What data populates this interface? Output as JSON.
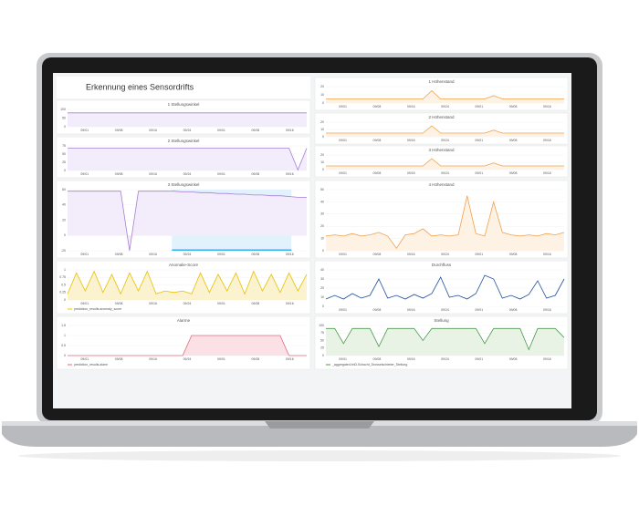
{
  "header": {
    "title": "Erkennung eines Sensordrifts"
  },
  "xticks": [
    "09/01",
    "09/08",
    "09/16",
    "09/24",
    "09/01",
    "09/08",
    "09/16"
  ],
  "left_column": [
    {
      "title": "1 Stellungswinkel",
      "ylim": [
        0,
        100
      ],
      "yticks": [
        0,
        50,
        100
      ],
      "series": [
        {
          "color": "#a77fd6",
          "fill": "#f3ecfa",
          "values": [
            80,
            80,
            80,
            80,
            80,
            80,
            80,
            80,
            80,
            80,
            80,
            80,
            80,
            80,
            80,
            80,
            80,
            80,
            80,
            80,
            80,
            80,
            80,
            80,
            80,
            80,
            80,
            80
          ]
        }
      ]
    },
    {
      "title": "2 Stellungswinkel",
      "ylim": [
        0,
        75
      ],
      "yticks": [
        0,
        25,
        50,
        75
      ],
      "series": [
        {
          "color": "#a77fd6",
          "fill": "#f3ecfa",
          "values": [
            68,
            68,
            68,
            68,
            68,
            68,
            68,
            68,
            68,
            68,
            68,
            68,
            68,
            68,
            68,
            68,
            68,
            68,
            68,
            68,
            68,
            68,
            68,
            68,
            68,
            68,
            2,
            68
          ]
        }
      ]
    },
    {
      "title": "3 Stellungswinkel",
      "ylim": [
        -20,
        60
      ],
      "yticks": [
        -20,
        0,
        20,
        40,
        60
      ],
      "series": [
        {
          "color": "#a77fd6",
          "fill": "#f3ecfa",
          "values": [
            58,
            58,
            58,
            58,
            58,
            58,
            58,
            -20,
            58,
            58,
            58,
            58,
            58,
            57,
            57,
            56,
            56,
            55,
            55,
            54,
            54,
            53,
            53,
            52,
            52,
            51,
            50,
            50
          ]
        }
      ]
    },
    {
      "title": "Anomalie-Score",
      "ylim": [
        0,
        1
      ],
      "yticks": [
        0,
        0.25,
        0.5,
        0.75,
        1
      ],
      "series": [
        {
          "name": "prediction_results.anomaly_score",
          "color": "#e8c000",
          "fill": "#fbf3cf",
          "values": [
            0.2,
            0.9,
            0.3,
            0.95,
            0.25,
            0.85,
            0.2,
            0.9,
            0.3,
            0.95,
            0.2,
            0.3,
            0.25,
            0.3,
            0.2,
            0.9,
            0.25,
            0.85,
            0.3,
            0.9,
            0.2,
            0.95,
            0.3,
            0.85,
            0.25,
            0.9,
            0.3,
            0.85
          ]
        }
      ]
    },
    {
      "title": "Alarme",
      "ylim": [
        0,
        1.5
      ],
      "yticks": [
        0,
        0.5,
        1,
        1.5
      ],
      "series": [
        {
          "name": "prediction_results.alarm",
          "color": "#e06c7c",
          "fill": "#fbe1e5",
          "values": [
            0,
            0,
            0,
            0,
            0,
            0,
            0,
            0,
            0,
            0,
            0,
            0,
            0,
            0,
            1,
            1,
            1,
            1,
            1,
            1,
            1,
            1,
            1,
            1,
            1,
            0,
            0,
            0
          ]
        }
      ]
    }
  ],
  "right_column": [
    {
      "title": "1 Höhenstand",
      "ylim": [
        0,
        20
      ],
      "yticks": [
        0,
        10,
        20
      ],
      "series": [
        {
          "color": "#f2a04a",
          "fill": "#fdf2e4",
          "values": [
            5,
            5,
            5,
            5,
            5,
            5,
            5,
            5,
            5,
            5,
            5,
            5,
            15,
            5,
            5,
            5,
            5,
            5,
            5,
            9,
            5,
            5,
            5,
            5,
            5,
            5,
            5,
            5
          ]
        }
      ]
    },
    {
      "title": "2 Höhenstand",
      "ylim": [
        0,
        20
      ],
      "yticks": [
        0,
        10,
        20
      ],
      "series": [
        {
          "color": "#f2a04a",
          "fill": "#fdf2e4",
          "values": [
            5,
            5,
            5,
            5,
            5,
            5,
            5,
            5,
            5,
            5,
            5,
            5,
            15,
            5,
            5,
            5,
            5,
            5,
            5,
            9,
            5,
            5,
            5,
            5,
            5,
            5,
            5,
            5
          ]
        }
      ]
    },
    {
      "title": "3 Höhenstand",
      "ylim": [
        0,
        20
      ],
      "yticks": [
        0,
        10,
        20
      ],
      "series": [
        {
          "color": "#f2a04a",
          "fill": "#fdf2e4",
          "values": [
            5,
            5,
            5,
            5,
            5,
            5,
            5,
            5,
            5,
            5,
            5,
            5,
            15,
            5,
            5,
            5,
            5,
            5,
            5,
            9,
            5,
            5,
            5,
            5,
            5,
            5,
            5,
            5
          ]
        }
      ]
    },
    {
      "title": "4 Höhenstand",
      "ylim": [
        0,
        50
      ],
      "yticks": [
        0,
        10,
        20,
        30,
        40,
        50
      ],
      "series": [
        {
          "color": "#f2a04a",
          "fill": "#fdf2e4",
          "values": [
            12,
            13,
            12,
            14,
            12,
            13,
            15,
            12,
            2,
            13,
            14,
            18,
            12,
            13,
            12,
            13,
            45,
            14,
            12,
            40,
            15,
            13,
            12,
            13,
            12,
            14,
            13,
            15
          ]
        }
      ]
    },
    {
      "title": "Durchfluss",
      "ylim": [
        0,
        40
      ],
      "yticks": [
        0,
        10,
        20,
        30,
        40
      ],
      "series": [
        {
          "color": "#1f4e9c",
          "fill": "#ffffff",
          "values": [
            8,
            12,
            8,
            14,
            9,
            12,
            30,
            9,
            12,
            8,
            13,
            9,
            14,
            32,
            10,
            12,
            8,
            14,
            34,
            30,
            9,
            12,
            8,
            13,
            28,
            9,
            12,
            30
          ]
        }
      ]
    },
    {
      "title": "Stellung",
      "ylim": [
        0,
        100
      ],
      "yticks": [
        0,
        25,
        50,
        75,
        100
      ],
      "series": [
        {
          "name": "_aggregated.bhD.Schacht_Drosselschieber_Stellung",
          "color": "#4e9a4e",
          "fill": "#e8f3e6",
          "values": [
            90,
            90,
            40,
            90,
            90,
            90,
            30,
            90,
            90,
            90,
            90,
            50,
            90,
            90,
            90,
            90,
            90,
            90,
            40,
            90,
            90,
            90,
            90,
            20,
            90,
            90,
            90,
            60
          ]
        }
      ]
    }
  ]
}
